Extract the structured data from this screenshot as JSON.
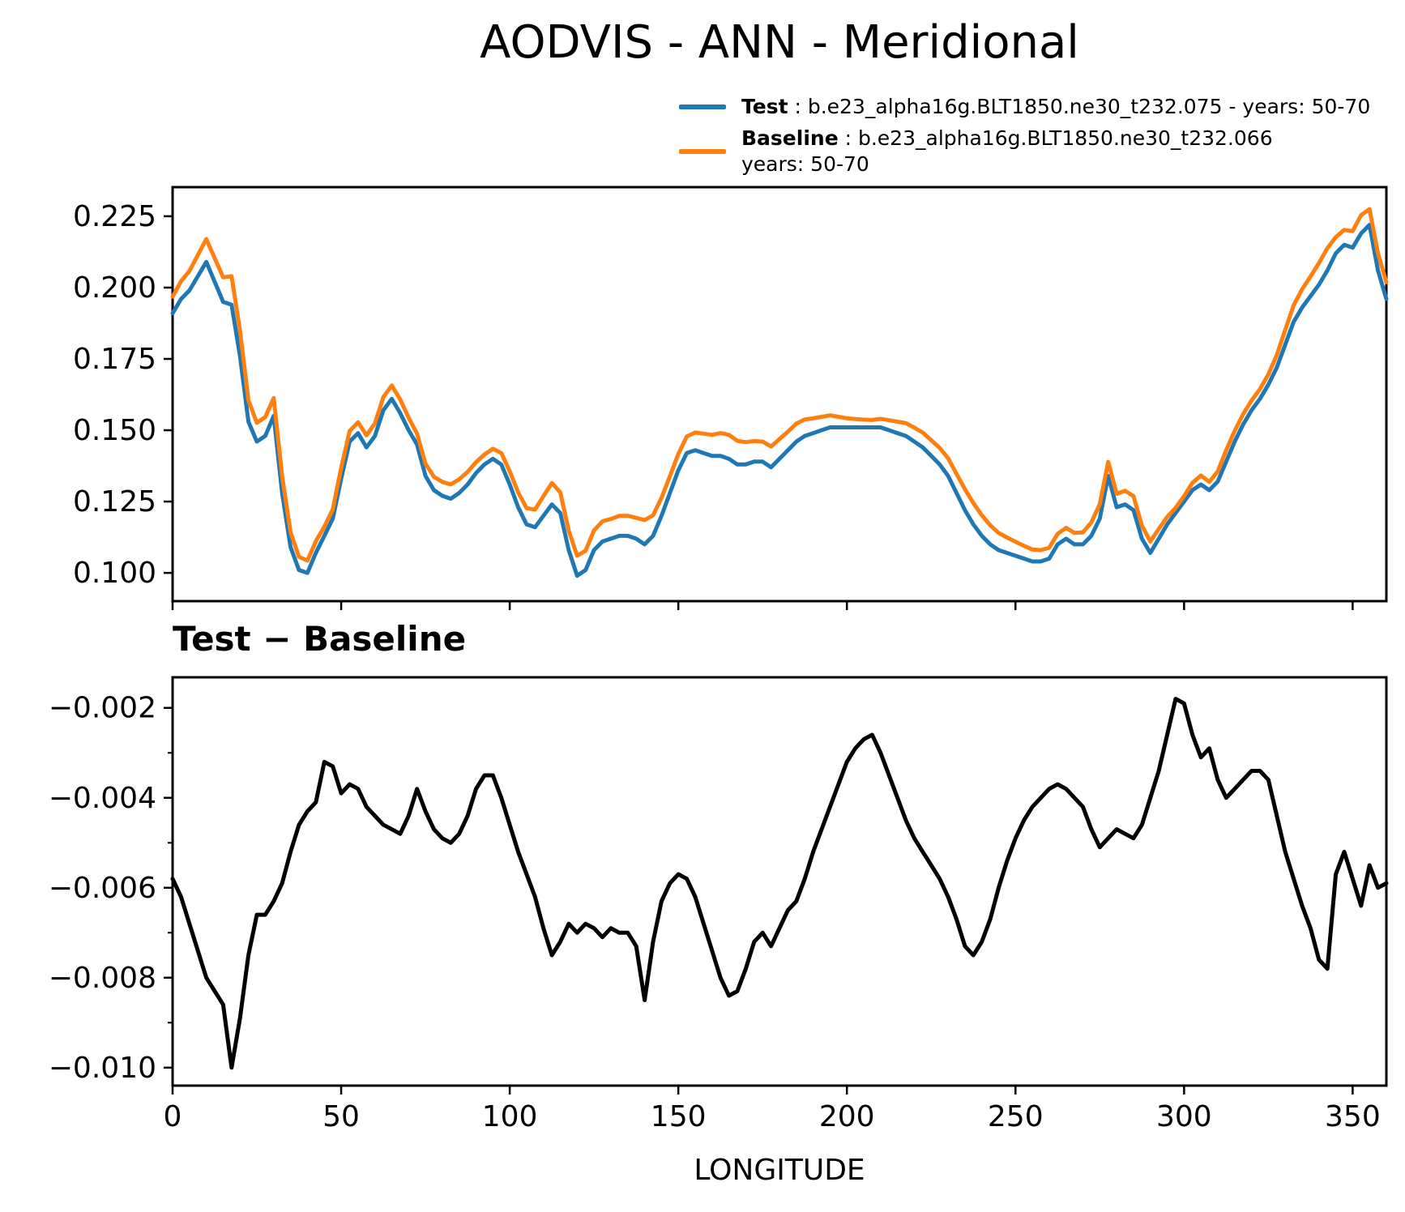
{
  "page": {
    "background": "#ffffff"
  },
  "header": {
    "title": "AODVIS - ANN - Meridional"
  },
  "legend": {
    "entries": [
      {
        "name": "Test",
        "separator": " : ",
        "description": "b.e23_alpha16g.BLT1850.ne30_t232.075 - years: 50-70",
        "color": "#1f77b4"
      },
      {
        "name": "Baseline",
        "separator": " : ",
        "description": "b.e23_alpha16g.BLT1850.ne30_t232.066",
        "description_line2": "years: 50-70",
        "color": "#ff7f0e"
      }
    ]
  },
  "chart_data": {
    "type": "line",
    "title": "AODVIS - ANN - Meridional",
    "xlabel": "LONGITUDE",
    "grid": false,
    "legend_position": "above top panel, right side",
    "x": {
      "start": 0,
      "step": 2.5,
      "end": 360
    },
    "xlim": [
      0,
      360
    ],
    "xtick_values": [
      0,
      50,
      100,
      150,
      200,
      250,
      300,
      350
    ],
    "xtick_labels": [
      "0",
      "50",
      "100",
      "150",
      "200",
      "250",
      "300",
      "350"
    ],
    "panels": [
      {
        "title": "",
        "ylim": [
          0.0901,
          0.2352
        ],
        "ytick_values": [
          0.1,
          0.125,
          0.15,
          0.175,
          0.2,
          0.225
        ],
        "ytick_labels": [
          "0.100",
          "0.125",
          "0.150",
          "0.175",
          "0.200",
          "0.225"
        ],
        "ytick_minor_values": [],
        "series": [
          {
            "name": "Test",
            "color": "#1f77b4",
            "values": [
              0.191,
              0.196,
              0.199,
              0.204,
              0.209,
              0.202,
              0.195,
              0.194,
              0.176,
              0.153,
              0.146,
              0.148,
              0.155,
              0.128,
              0.109,
              0.101,
              0.1,
              0.107,
              0.113,
              0.119,
              0.133,
              0.146,
              0.149,
              0.144,
              0.148,
              0.157,
              0.161,
              0.156,
              0.15,
              0.145,
              0.134,
              0.129,
              0.127,
              0.126,
              0.128,
              0.131,
              0.135,
              0.138,
              0.14,
              0.138,
              0.131,
              0.123,
              0.117,
              0.116,
              0.12,
              0.124,
              0.121,
              0.108,
              0.099,
              0.101,
              0.108,
              0.111,
              0.112,
              0.113,
              0.113,
              0.112,
              0.11,
              0.113,
              0.12,
              0.128,
              0.136,
              0.142,
              0.143,
              0.142,
              0.141,
              0.141,
              0.14,
              0.138,
              0.138,
              0.139,
              0.139,
              0.137,
              0.14,
              0.143,
              0.146,
              0.148,
              0.149,
              0.15,
              0.151,
              0.151,
              0.151,
              0.151,
              0.151,
              0.151,
              0.151,
              0.15,
              0.149,
              0.148,
              0.146,
              0.144,
              0.141,
              0.138,
              0.134,
              0.128,
              0.122,
              0.117,
              0.113,
              0.11,
              0.108,
              0.107,
              0.106,
              0.105,
              0.104,
              0.104,
              0.105,
              0.11,
              0.112,
              0.11,
              0.11,
              0.113,
              0.119,
              0.134,
              0.123,
              0.124,
              0.122,
              0.112,
              0.107,
              0.112,
              0.117,
              0.121,
              0.125,
              0.129,
              0.131,
              0.129,
              0.132,
              0.139,
              0.146,
              0.152,
              0.157,
              0.161,
              0.166,
              0.172,
              0.18,
              0.188,
              0.193,
              0.197,
              0.201,
              0.206,
              0.212,
              0.215,
              0.214,
              0.219,
              0.222,
              0.206,
              0.196
            ]
          },
          {
            "name": "Baseline",
            "color": "#ff7f0e",
            "values": [
              0.1968,
              0.2022,
              0.2058,
              0.2114,
              0.217,
              0.2103,
              0.2036,
              0.204,
              0.1849,
              0.1605,
              0.1526,
              0.1546,
              0.1613,
              0.1339,
              0.1142,
              0.1056,
              0.1043,
              0.1111,
              0.1162,
              0.1223,
              0.1369,
              0.1497,
              0.1528,
              0.1482,
              0.1524,
              0.1616,
              0.1657,
              0.1608,
              0.1544,
              0.1488,
              0.1383,
              0.1337,
              0.1319,
              0.131,
              0.1328,
              0.1354,
              0.1388,
              0.1415,
              0.1435,
              0.142,
              0.1356,
              0.1282,
              0.1227,
              0.1222,
              0.1269,
              0.1315,
              0.1282,
              0.1148,
              0.106,
              0.1078,
              0.1149,
              0.1181,
              0.1189,
              0.12,
              0.12,
              0.1193,
              0.1185,
              0.1202,
              0.1263,
              0.1339,
              0.1417,
              0.1478,
              0.1492,
              0.1488,
              0.1484,
              0.149,
              0.1484,
              0.1463,
              0.1458,
              0.1462,
              0.146,
              0.1443,
              0.1469,
              0.1495,
              0.1523,
              0.1538,
              0.1542,
              0.1547,
              0.1552,
              0.1547,
              0.1542,
              0.1539,
              0.1537,
              0.1536,
              0.154,
              0.1535,
              0.153,
              0.1525,
              0.1509,
              0.1492,
              0.1465,
              0.1438,
              0.1402,
              0.1347,
              0.1293,
              0.1245,
              0.1202,
              0.1167,
              0.114,
              0.1124,
              0.1109,
              0.1095,
              0.1082,
              0.108,
              0.1088,
              0.1137,
              0.1158,
              0.114,
              0.1142,
              0.1177,
              0.1241,
              0.1389,
              0.1277,
              0.1288,
              0.1269,
              0.1166,
              0.111,
              0.1154,
              0.1196,
              0.1228,
              0.1269,
              0.1316,
              0.1341,
              0.1319,
              0.1356,
              0.143,
              0.1498,
              0.1556,
              0.1604,
              0.1644,
              0.1696,
              0.1764,
              0.1852,
              0.1938,
              0.1994,
              0.2039,
              0.2086,
              0.2138,
              0.2177,
              0.2202,
              0.2198,
              0.2254,
              0.2275,
              0.212,
              0.2019
            ]
          }
        ]
      },
      {
        "title": "Test − Baseline",
        "ylim": [
          -0.0104,
          -0.00132
        ],
        "ytick_values": [
          -0.01,
          -0.008,
          -0.006,
          -0.004,
          -0.002
        ],
        "ytick_labels": [
          "−0.010",
          "−0.008",
          "−0.006",
          "−0.004",
          "−0.002"
        ],
        "ytick_minor_values": [
          -0.009,
          -0.007,
          -0.005,
          -0.003
        ],
        "series": [
          {
            "name": "Test − Baseline",
            "color": "#000000",
            "values": [
              -0.0058,
              -0.0062,
              -0.0068,
              -0.0074,
              -0.008,
              -0.0083,
              -0.0086,
              -0.01,
              -0.0089,
              -0.0075,
              -0.0066,
              -0.0066,
              -0.0063,
              -0.0059,
              -0.0052,
              -0.0046,
              -0.0043,
              -0.0041,
              -0.0032,
              -0.0033,
              -0.0039,
              -0.0037,
              -0.0038,
              -0.0042,
              -0.0044,
              -0.0046,
              -0.0047,
              -0.0048,
              -0.0044,
              -0.0038,
              -0.0043,
              -0.0047,
              -0.0049,
              -0.005,
              -0.0048,
              -0.0044,
              -0.0038,
              -0.0035,
              -0.0035,
              -0.004,
              -0.0046,
              -0.0052,
              -0.0057,
              -0.0062,
              -0.0069,
              -0.0075,
              -0.0072,
              -0.0068,
              -0.007,
              -0.0068,
              -0.0069,
              -0.0071,
              -0.0069,
              -0.007,
              -0.007,
              -0.0073,
              -0.0085,
              -0.0072,
              -0.0063,
              -0.0059,
              -0.0057,
              -0.0058,
              -0.0062,
              -0.0068,
              -0.0074,
              -0.008,
              -0.0084,
              -0.0083,
              -0.0078,
              -0.0072,
              -0.007,
              -0.0073,
              -0.0069,
              -0.0065,
              -0.0063,
              -0.0058,
              -0.0052,
              -0.0047,
              -0.0042,
              -0.0037,
              -0.0032,
              -0.0029,
              -0.0027,
              -0.0026,
              -0.003,
              -0.0035,
              -0.004,
              -0.0045,
              -0.0049,
              -0.0052,
              -0.0055,
              -0.0058,
              -0.0062,
              -0.0067,
              -0.0073,
              -0.0075,
              -0.0072,
              -0.0067,
              -0.006,
              -0.0054,
              -0.0049,
              -0.0045,
              -0.0042,
              -0.004,
              -0.0038,
              -0.0037,
              -0.0038,
              -0.004,
              -0.0042,
              -0.0047,
              -0.0051,
              -0.0049,
              -0.0047,
              -0.0048,
              -0.0049,
              -0.0046,
              -0.004,
              -0.0034,
              -0.0026,
              -0.0018,
              -0.0019,
              -0.0026,
              -0.0031,
              -0.0029,
              -0.0036,
              -0.004,
              -0.0038,
              -0.0036,
              -0.0034,
              -0.0034,
              -0.0036,
              -0.0044,
              -0.0052,
              -0.0058,
              -0.0064,
              -0.0069,
              -0.0076,
              -0.0078,
              -0.0057,
              -0.0052,
              -0.0058,
              -0.0064,
              -0.0055,
              -0.006,
              -0.0059
            ]
          }
        ]
      }
    ]
  }
}
